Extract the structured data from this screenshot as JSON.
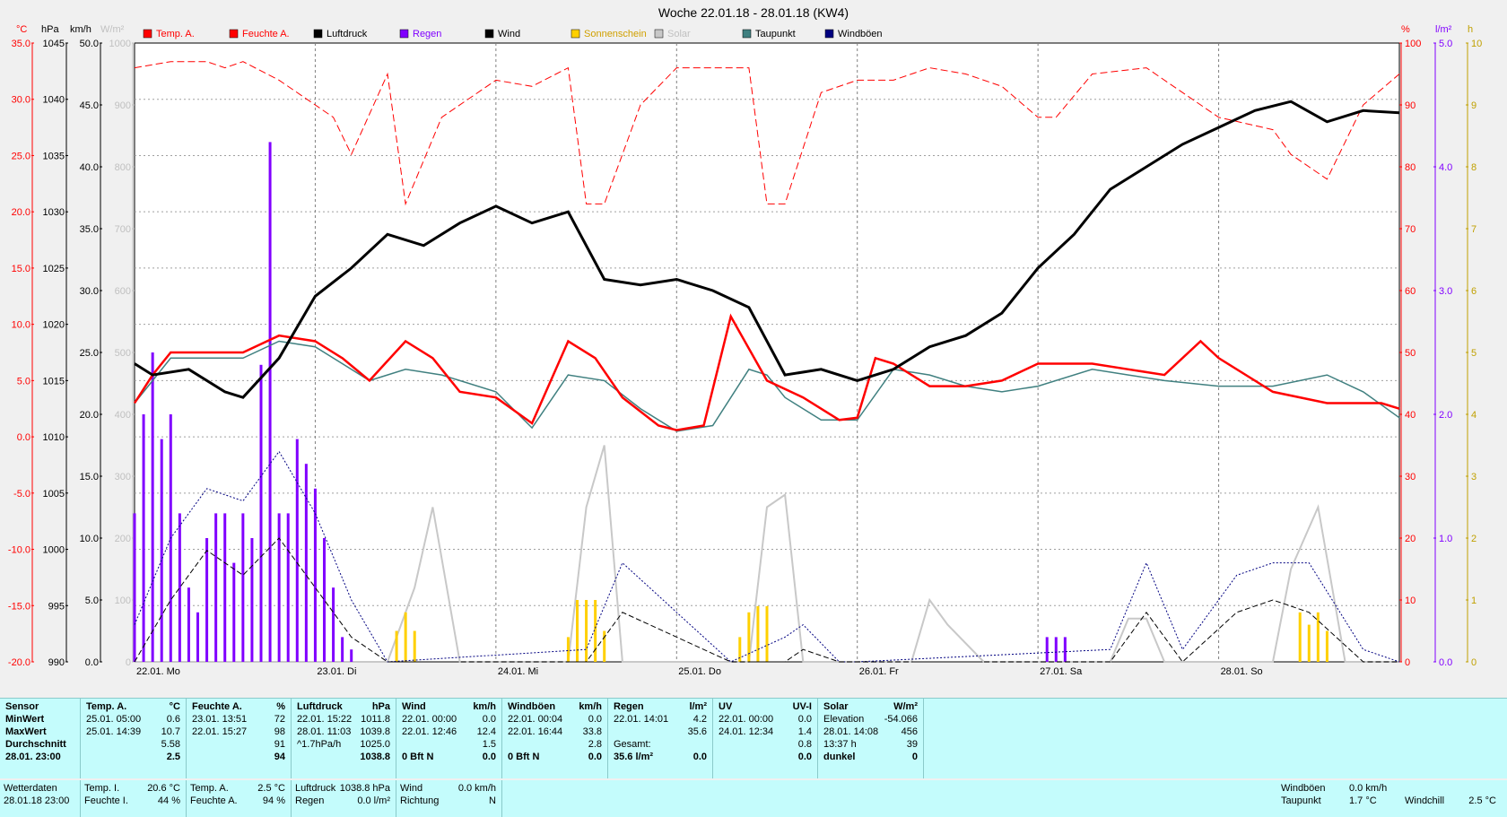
{
  "chart_data": {
    "type": "line",
    "title": "Woche 22.01.18 - 28.01.18 (KW4)",
    "axes_units": {
      "temp": "°C",
      "pressure": "hPa",
      "wind": "km/h",
      "solar": "W/m²",
      "humidity": "%",
      "rain": "l/m²",
      "sun": "h"
    },
    "temp_axis": {
      "range": [
        -20,
        35
      ],
      "ticks": [
        "35.0",
        "30.0",
        "25.0",
        "20.0",
        "15.0",
        "10.0",
        "5.0",
        "0.0",
        "-5.0",
        "-10.0",
        "-15.0",
        "-20.0"
      ]
    },
    "pressure_axis": {
      "range": [
        990,
        1045
      ],
      "ticks": [
        "1045",
        "1040",
        "1035",
        "1030",
        "1025",
        "1020",
        "1015",
        "1010",
        "1005",
        "1000",
        "995",
        "990"
      ]
    },
    "wind_axis": {
      "range": [
        0,
        50
      ],
      "ticks": [
        "50.0",
        "45.0",
        "40.0",
        "35.0",
        "30.0",
        "25.0",
        "20.0",
        "15.0",
        "10.0",
        "5.0",
        "0.0"
      ]
    },
    "solar_axis": {
      "range": [
        0,
        1000
      ],
      "ticks": [
        "1000",
        "900",
        "800",
        "700",
        "600",
        "500",
        "400",
        "300",
        "200",
        "100",
        "0"
      ]
    },
    "humidity_axis": {
      "range": [
        0,
        100
      ],
      "ticks": [
        "100",
        "90",
        "80",
        "70",
        "60",
        "50",
        "40",
        "30",
        "20",
        "10",
        "0"
      ]
    },
    "rain_axis": {
      "range": [
        0,
        5
      ],
      "ticks": [
        "5.0",
        "4.0",
        "3.0",
        "2.0",
        "1.0",
        "0.0"
      ]
    },
    "sun_axis": {
      "range": [
        0,
        10
      ],
      "ticks": [
        "10",
        "9",
        "8",
        "7",
        "6",
        "5",
        "4",
        "3",
        "2",
        "1",
        "0"
      ]
    },
    "x_range": [
      0,
      7
    ],
    "x_ticks": [
      "22.01. Mo",
      "23.01. Di",
      "24.01. Mi",
      "25.01. Do",
      "26.01. Fr",
      "27.01. Sa",
      "28.01. So"
    ],
    "grid": true,
    "legend": [
      {
        "name": "Temp. A.",
        "color": "#ff0000"
      },
      {
        "name": "Feuchte A.",
        "color": "#ff0000"
      },
      {
        "name": "Luftdruck",
        "color": "#000000"
      },
      {
        "name": "Regen",
        "color": "#8000ff"
      },
      {
        "name": "Wind",
        "color": "#000000"
      },
      {
        "name": "Sonnenschein",
        "color": "#ffd000"
      },
      {
        "name": "Solar",
        "color": "#c8c8c8"
      },
      {
        "name": "Taupunkt",
        "color": "#408080"
      },
      {
        "name": "Windböen",
        "color": "#000080"
      }
    ],
    "series": [
      {
        "name": "Temp. A.",
        "unit": "°C",
        "x": [
          0,
          0.1,
          0.2,
          0.4,
          0.6,
          0.8,
          1.0,
          1.15,
          1.3,
          1.5,
          1.65,
          1.8,
          2.0,
          2.2,
          2.4,
          2.55,
          2.7,
          2.9,
          3.0,
          3.15,
          3.3,
          3.5,
          3.7,
          3.9,
          4.0,
          4.1,
          4.2,
          4.4,
          4.6,
          4.8,
          5.0,
          5.1,
          5.3,
          5.5,
          5.7,
          5.9,
          6.0,
          6.3,
          6.6,
          6.8,
          6.9,
          7.0
        ],
        "values": [
          3.0,
          5.5,
          7.5,
          7.5,
          7.5,
          9.0,
          8.5,
          7.0,
          5.0,
          8.5,
          7.0,
          4.0,
          3.5,
          1.2,
          8.5,
          7.0,
          3.5,
          1.0,
          0.6,
          1.0,
          10.7,
          5.0,
          3.5,
          1.5,
          1.7,
          7.0,
          6.5,
          4.5,
          4.5,
          5.0,
          6.5,
          6.5,
          6.5,
          6.0,
          5.5,
          8.5,
          7.0,
          4.0,
          3.0,
          3.0,
          3.0,
          2.5
        ]
      },
      {
        "name": "Feuchte A.",
        "unit": "%",
        "x": [
          0,
          0.2,
          0.4,
          0.5,
          0.6,
          0.8,
          1.0,
          1.1,
          1.2,
          1.4,
          1.5,
          1.7,
          2.0,
          2.2,
          2.4,
          2.5,
          2.6,
          2.8,
          3.0,
          3.2,
          3.4,
          3.5,
          3.6,
          3.8,
          4.0,
          4.2,
          4.4,
          4.6,
          4.8,
          5.0,
          5.1,
          5.3,
          5.6,
          5.8,
          6.0,
          6.3,
          6.4,
          6.6,
          6.8,
          7.0
        ],
        "values": [
          96,
          97,
          97,
          96,
          97,
          94,
          90,
          88,
          82,
          95,
          74,
          88,
          94,
          93,
          96,
          74,
          74,
          90,
          96,
          96,
          96,
          74,
          74,
          92,
          94,
          94,
          96,
          95,
          93,
          88,
          88,
          95,
          96,
          92,
          88,
          86,
          82,
          78,
          90,
          95
        ]
      },
      {
        "name": "Luftdruck",
        "unit": "hPa",
        "x": [
          0,
          0.1,
          0.3,
          0.5,
          0.6,
          0.8,
          1.0,
          1.2,
          1.4,
          1.6,
          1.8,
          2.0,
          2.2,
          2.4,
          2.6,
          2.8,
          3.0,
          3.2,
          3.4,
          3.6,
          3.8,
          4.0,
          4.2,
          4.4,
          4.6,
          4.8,
          5.0,
          5.2,
          5.4,
          5.6,
          5.8,
          6.0,
          6.2,
          6.4,
          6.6,
          6.8,
          7.0
        ],
        "values": [
          1016.5,
          1015.5,
          1016,
          1014,
          1013.5,
          1017,
          1022.5,
          1025,
          1028,
          1027,
          1029,
          1030.5,
          1029,
          1030,
          1024,
          1023.5,
          1024,
          1023,
          1021.5,
          1015.5,
          1016,
          1015,
          1016,
          1018,
          1019,
          1021,
          1025,
          1028,
          1032,
          1034,
          1036,
          1037.5,
          1039,
          1039.8,
          1038,
          1039,
          1038.8
        ]
      },
      {
        "name": "Taupunkt",
        "unit": "°C",
        "x": [
          0,
          0.2,
          0.4,
          0.6,
          0.8,
          1.0,
          1.3,
          1.5,
          1.7,
          2.0,
          2.2,
          2.4,
          2.6,
          2.8,
          3.0,
          3.2,
          3.4,
          3.5,
          3.6,
          3.8,
          4.0,
          4.2,
          4.4,
          4.6,
          4.8,
          5.0,
          5.3,
          5.5,
          5.7,
          6.0,
          6.3,
          6.6,
          6.8,
          7.0
        ],
        "values": [
          3.0,
          7.0,
          7.0,
          7.0,
          8.5,
          8.0,
          5.0,
          6.0,
          5.5,
          4.0,
          0.8,
          5.5,
          5.0,
          2.5,
          0.5,
          1.0,
          6.0,
          5.5,
          3.5,
          1.5,
          1.5,
          6.0,
          5.5,
          4.5,
          4.0,
          4.5,
          6.0,
          5.5,
          5.0,
          4.5,
          4.5,
          5.5,
          4.0,
          1.7
        ]
      },
      {
        "name": "Wind",
        "unit": "km/h",
        "x": [
          0,
          0.2,
          0.4,
          0.6,
          0.8,
          1.0,
          1.2,
          1.4,
          2.5,
          2.7,
          3.3,
          3.6,
          3.7,
          3.9,
          4.0,
          5.4,
          5.6,
          5.8,
          6.1,
          6.3,
          6.5,
          6.8,
          7.0
        ],
        "values": [
          0,
          5,
          9,
          7,
          10,
          6,
          2,
          0,
          0,
          4,
          0,
          0,
          1,
          0,
          0,
          0,
          4,
          0,
          4,
          5,
          4,
          0,
          0
        ]
      },
      {
        "name": "Windböen",
        "unit": "km/h",
        "x": [
          0,
          0.2,
          0.4,
          0.6,
          0.8,
          1.0,
          1.2,
          1.4,
          2.5,
          2.7,
          3.3,
          3.6,
          3.7,
          3.9,
          4.0,
          5.4,
          5.6,
          5.8,
          6.1,
          6.3,
          6.5,
          6.8,
          7.0
        ],
        "values": [
          3,
          10,
          14,
          13,
          17,
          12,
          5,
          0,
          1,
          8,
          0,
          2,
          3,
          0,
          0,
          1,
          8,
          1,
          7,
          8,
          8,
          1,
          0
        ]
      },
      {
        "name": "Solar",
        "unit": "W/m²",
        "x": [
          0,
          1.4,
          1.55,
          1.65,
          1.8,
          2.4,
          2.5,
          2.6,
          2.7,
          3.4,
          3.5,
          3.6,
          3.7,
          4.3,
          4.4,
          4.5,
          4.7,
          5.4,
          5.5,
          5.6,
          5.7,
          6.3,
          6.4,
          6.55,
          6.7,
          7.0
        ],
        "values": [
          0,
          0,
          120,
          250,
          0,
          0,
          250,
          350,
          0,
          0,
          250,
          270,
          0,
          0,
          100,
          60,
          0,
          0,
          70,
          70,
          0,
          0,
          150,
          250,
          0,
          0
        ]
      },
      {
        "name": "Sonnenschein",
        "unit": "h",
        "x": [
          1.45,
          1.5,
          1.55,
          2.4,
          2.45,
          2.5,
          2.55,
          2.6,
          3.35,
          3.4,
          3.45,
          3.5,
          6.45,
          6.5,
          6.55,
          6.6
        ],
        "values": [
          0.5,
          0.8,
          0.5,
          0.4,
          1.0,
          1.0,
          1.0,
          0.5,
          0.4,
          0.8,
          0.9,
          0.9,
          0.8,
          0.6,
          0.8,
          0.5
        ]
      },
      {
        "name": "Regen",
        "unit": "l/m²",
        "x": [
          0,
          0.05,
          0.1,
          0.15,
          0.2,
          0.25,
          0.3,
          0.35,
          0.4,
          0.45,
          0.5,
          0.55,
          0.6,
          0.65,
          0.7,
          0.75,
          0.8,
          0.85,
          0.9,
          0.95,
          1.0,
          1.05,
          1.1,
          1.15,
          1.2,
          5.05,
          5.1,
          5.15
        ],
        "values": [
          1.2,
          2.0,
          2.5,
          1.8,
          2.0,
          1.2,
          0.6,
          0.4,
          1.0,
          1.2,
          1.2,
          0.8,
          1.2,
          1.0,
          2.4,
          4.2,
          1.2,
          1.2,
          1.8,
          1.6,
          1.4,
          1.0,
          0.6,
          0.2,
          0.1,
          0.2,
          0.2,
          0.2
        ]
      }
    ]
  },
  "table": {
    "rows": [
      [
        "Sensor",
        "Temp. A.",
        "°C",
        "Feuchte A.",
        "%",
        "Luftdruck",
        "hPa",
        "Wind",
        "km/h",
        "Windböen",
        "km/h",
        "Regen",
        "l/m²",
        "UV",
        "UV-I",
        "Solar",
        "W/m²"
      ],
      [
        "MinWert",
        "25.01. 05:00",
        "0.6",
        "23.01. 13:51",
        "72",
        "22.01. 15:22",
        "1011.8",
        "22.01. 00:00",
        "0.0",
        "22.01. 00:04",
        "0.0",
        "22.01. 14:01",
        "4.2",
        "22.01. 00:00",
        "0.0",
        "Elevation",
        "-54.066"
      ],
      [
        "MaxWert",
        "25.01. 14:39",
        "10.7",
        "22.01. 15:27",
        "98",
        "28.01. 11:03",
        "1039.8",
        "22.01. 12:46",
        "12.4",
        "22.01. 16:44",
        "33.8",
        "",
        "35.6",
        "24.01. 12:34",
        "1.4",
        "28.01. 14:08",
        "456"
      ],
      [
        "Durchschnitt",
        "",
        "5.58",
        "",
        "91",
        "^1.7hPa/h",
        "1025.0",
        "",
        "1.5",
        "",
        "2.8",
        "Gesamt:",
        "",
        "",
        "0.8",
        "13:37 h",
        "39"
      ],
      [
        "28.01. 23:00",
        "",
        "2.5",
        "",
        "94",
        "",
        "1038.8",
        "0 Bft N",
        "0.0",
        "0 Bft N",
        "0.0",
        "35.6 l/m²",
        "0.0",
        "",
        "0.0",
        "dunkel",
        "0"
      ]
    ]
  },
  "status": {
    "wetterdaten": "Wetterdaten",
    "datetime": "28.01.18 23:00",
    "temp_i_label": "Temp. I.",
    "temp_i": "20.6 °C",
    "feuchte_i_label": "Feuchte I.",
    "feuchte_i": "44 %",
    "temp_a_label": "Temp. A.",
    "temp_a": "2.5 °C",
    "feuchte_a_label": "Feuchte A.",
    "feuchte_a": "94 %",
    "luftdruck_label": "Luftdruck",
    "luftdruck": "1038.8 hPa",
    "regen_label": "Regen",
    "regen": "0.0 l/m²",
    "wind_label": "Wind",
    "wind": "0.0 km/h",
    "richtung_label": "Richtung",
    "richtung": "N",
    "windboeen_label": "Windböen",
    "windboeen": "0.0 km/h",
    "taupunkt_label": "Taupunkt",
    "taupunkt": "1.7 °C",
    "windchill_label": "Windchill",
    "windchill": "2.5 °C"
  }
}
